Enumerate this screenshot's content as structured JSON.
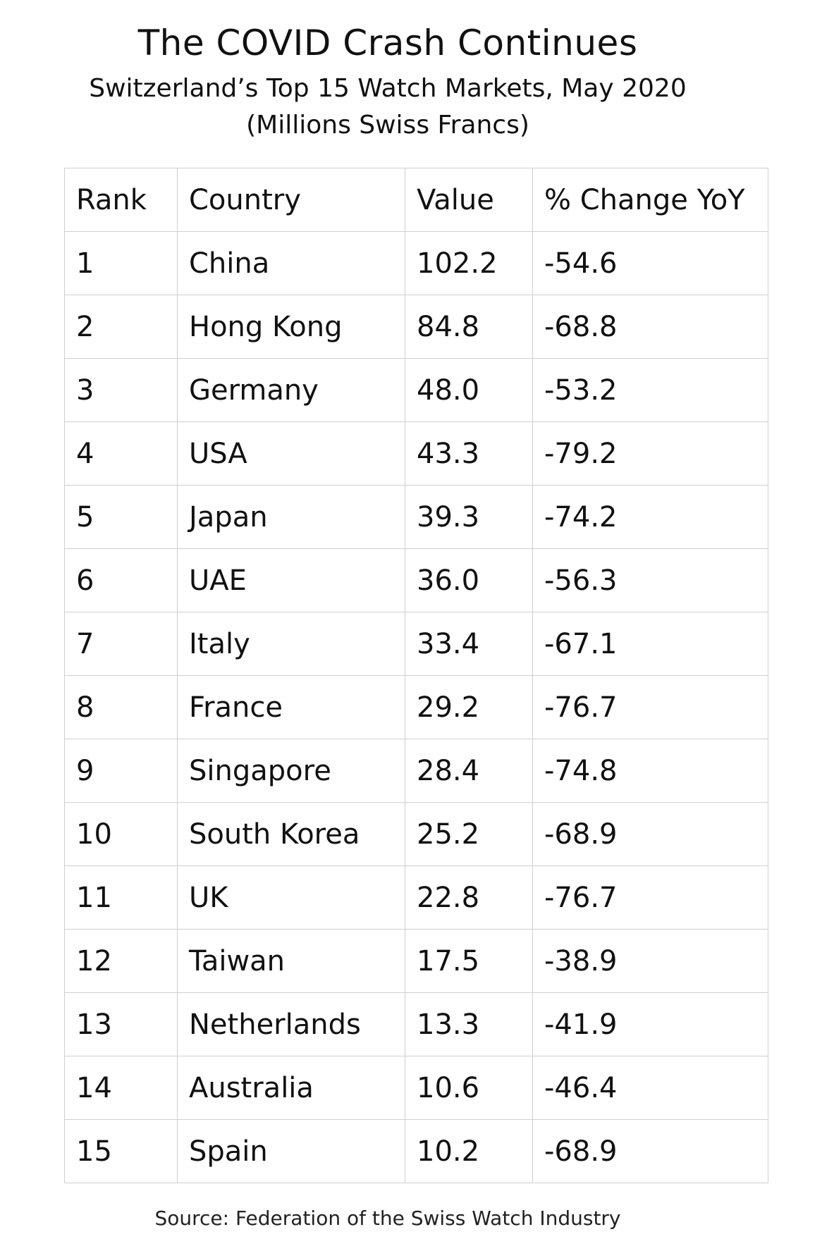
{
  "title": "The COVID Crash Continues",
  "subtitle": "Switzerland’s Top 15 Watch Markets, May 2020",
  "units": "(Millions Swiss Francs)",
  "columns": [
    "Rank",
    "Country",
    "Value",
    "% Change YoY"
  ],
  "rows": [
    [
      "1",
      "China",
      "102.2",
      "-54.6"
    ],
    [
      "2",
      "Hong Kong",
      "84.8",
      "-68.8"
    ],
    [
      "3",
      "Germany",
      "48.0",
      "-53.2"
    ],
    [
      "4",
      "USA",
      "43.3",
      "-79.2"
    ],
    [
      "5",
      "Japan",
      "39.3",
      "-74.2"
    ],
    [
      "6",
      "UAE",
      "36.0",
      "-56.3"
    ],
    [
      "7",
      "Italy",
      "33.4",
      "-67.1"
    ],
    [
      "8",
      "France",
      "29.2",
      "-76.7"
    ],
    [
      "9",
      "Singapore",
      "28.4",
      "-74.8"
    ],
    [
      "10",
      "South Korea",
      "25.2",
      "-68.9"
    ],
    [
      "11",
      "UK",
      "22.8",
      "-76.7"
    ],
    [
      "12",
      "Taiwan",
      "17.5",
      "-38.9"
    ],
    [
      "13",
      "Netherlands",
      "13.3",
      "-41.9"
    ],
    [
      "14",
      "Australia",
      "10.6",
      "-46.4"
    ],
    [
      "15",
      "Spain",
      "10.2",
      "-68.9"
    ]
  ],
  "source": "Source: Federation of the Swiss Watch Industry"
}
